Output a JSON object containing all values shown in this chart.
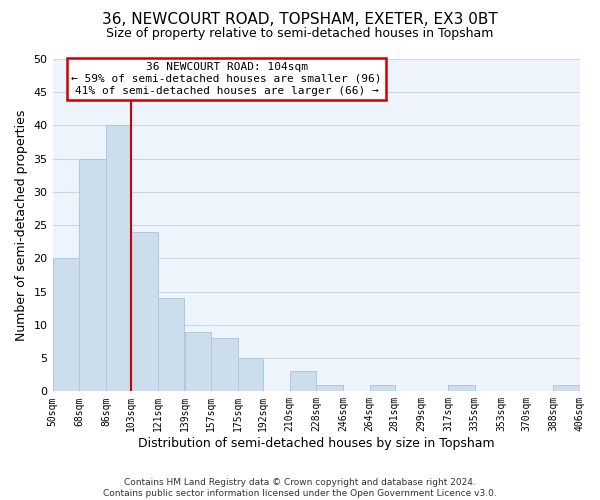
{
  "title": "36, NEWCOURT ROAD, TOPSHAM, EXETER, EX3 0BT",
  "subtitle": "Size of property relative to semi-detached houses in Topsham",
  "xlabel": "Distribution of semi-detached houses by size in Topsham",
  "ylabel": "Number of semi-detached properties",
  "bar_color": "#ccdded",
  "bar_edge_color": "#b0c8dc",
  "grid_color": "#c8d8e8",
  "bin_edges": [
    50,
    68,
    86,
    103,
    121,
    139,
    157,
    175,
    192,
    210,
    228,
    246,
    264,
    281,
    299,
    317,
    335,
    353,
    370,
    388,
    406
  ],
  "bin_labels": [
    "50sqm",
    "68sqm",
    "86sqm",
    "103sqm",
    "121sqm",
    "139sqm",
    "157sqm",
    "175sqm",
    "192sqm",
    "210sqm",
    "228sqm",
    "246sqm",
    "264sqm",
    "281sqm",
    "299sqm",
    "317sqm",
    "335sqm",
    "353sqm",
    "370sqm",
    "388sqm",
    "406sqm"
  ],
  "counts": [
    20,
    35,
    40,
    24,
    14,
    9,
    8,
    5,
    0,
    3,
    1,
    0,
    1,
    0,
    0,
    1,
    0,
    0,
    0,
    1
  ],
  "property_line_x": 103,
  "property_line_color": "#cc0000",
  "annotation_box_edge_color": "#cc0000",
  "annotation_title": "36 NEWCOURT ROAD: 104sqm",
  "annotation_line1": "← 59% of semi-detached houses are smaller (96)",
  "annotation_line2": "41% of semi-detached houses are larger (66) →",
  "ylim": [
    0,
    50
  ],
  "yticks": [
    0,
    5,
    10,
    15,
    20,
    25,
    30,
    35,
    40,
    45,
    50
  ],
  "footer1": "Contains HM Land Registry data © Crown copyright and database right 2024.",
  "footer2": "Contains public sector information licensed under the Open Government Licence v3.0.",
  "background_color": "#eef4fb",
  "fig_background_color": "#ffffff"
}
